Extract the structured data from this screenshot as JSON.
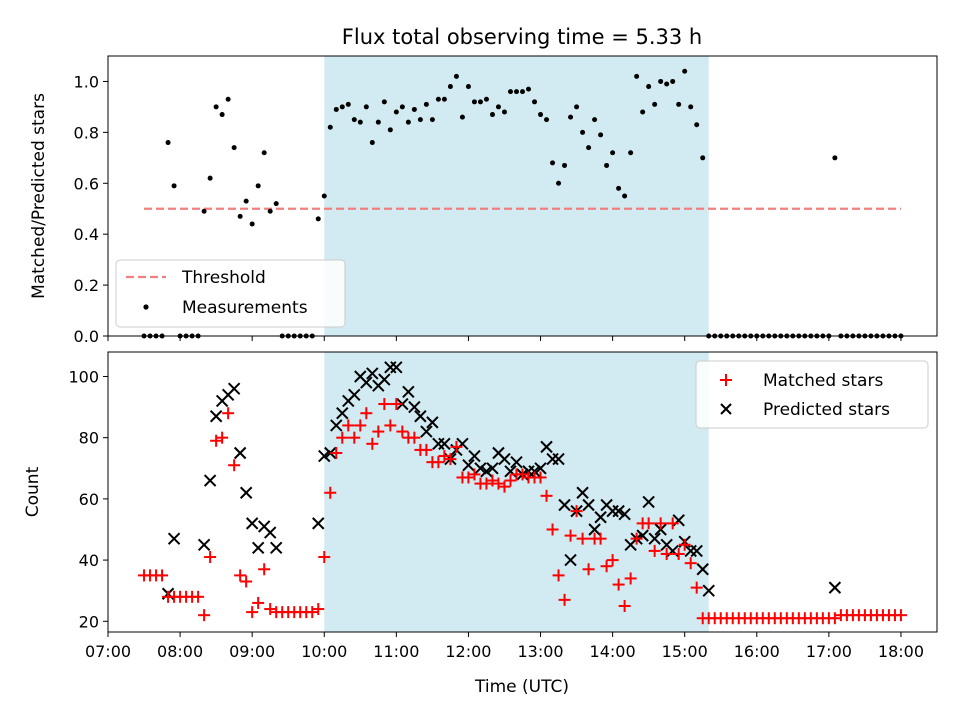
{
  "title": "Flux total observing time = 5.33 h",
  "colors": {
    "highlight": "#add8e6",
    "threshold": "#f08080",
    "measurement": "#000000",
    "matched": "#ff0000",
    "predicted": "#000000"
  },
  "chart_data": [
    {
      "type": "scatter",
      "ylabel": "Matched/Predicted stars",
      "ylim": [
        0,
        1.1
      ],
      "yticks": [
        "0.0",
        "0.2",
        "0.4",
        "0.6",
        "0.8",
        "1.0"
      ],
      "xlim": [
        "07:00",
        "18:30"
      ],
      "highlight_span": [
        "10:00",
        "15:20"
      ],
      "legend": {
        "position": "lower-left",
        "entries": [
          "Threshold",
          "Measurements"
        ]
      },
      "threshold": {
        "name": "Threshold",
        "x": [
          "07:30",
          "18:00"
        ],
        "value": 0.5
      },
      "series": [
        {
          "name": "Measurements",
          "x": [
            "07:30",
            "07:35",
            "07:40",
            "07:45",
            "07:50",
            "07:55",
            "08:00",
            "08:05",
            "08:10",
            "08:15",
            "08:20",
            "08:25",
            "08:30",
            "08:35",
            "08:40",
            "08:45",
            "08:50",
            "08:55",
            "09:00",
            "09:05",
            "09:10",
            "09:15",
            "09:20",
            "09:25",
            "09:30",
            "09:35",
            "09:40",
            "09:45",
            "09:50",
            "09:55",
            "10:00",
            "10:05",
            "10:10",
            "10:15",
            "10:20",
            "10:25",
            "10:30",
            "10:35",
            "10:40",
            "10:45",
            "10:50",
            "10:55",
            "11:00",
            "11:05",
            "11:10",
            "11:15",
            "11:20",
            "11:25",
            "11:30",
            "11:35",
            "11:40",
            "11:45",
            "11:50",
            "11:55",
            "12:00",
            "12:05",
            "12:10",
            "12:15",
            "12:20",
            "12:25",
            "12:30",
            "12:35",
            "12:40",
            "12:45",
            "12:50",
            "12:55",
            "13:00",
            "13:05",
            "13:10",
            "13:15",
            "13:20",
            "13:25",
            "13:30",
            "13:35",
            "13:40",
            "13:45",
            "13:50",
            "13:55",
            "14:00",
            "14:05",
            "14:10",
            "14:15",
            "14:20",
            "14:25",
            "14:30",
            "14:35",
            "14:40",
            "14:45",
            "14:50",
            "14:55",
            "15:00",
            "15:05",
            "15:10",
            "15:15",
            "15:20",
            "15:25",
            "15:30",
            "15:35",
            "15:40",
            "15:45",
            "15:50",
            "15:55",
            "16:00",
            "16:05",
            "16:10",
            "16:15",
            "16:20",
            "16:25",
            "16:30",
            "16:35",
            "16:40",
            "16:45",
            "16:50",
            "16:55",
            "17:00",
            "17:05",
            "17:10",
            "17:15",
            "17:20",
            "17:25",
            "17:30",
            "17:35",
            "17:40",
            "17:45",
            "17:50",
            "17:55",
            "18:00"
          ],
          "y": [
            0,
            0,
            0,
            0,
            0.76,
            0.59,
            0,
            0,
            0,
            0,
            0.49,
            0.62,
            0.9,
            0.87,
            0.93,
            0.74,
            0.47,
            0.53,
            0.44,
            0.59,
            0.72,
            0.49,
            0.52,
            0,
            0,
            0,
            0,
            0,
            0,
            0.46,
            0.55,
            0.82,
            0.89,
            0.9,
            0.91,
            0.85,
            0.84,
            0.9,
            0.76,
            0.84,
            0.92,
            0.81,
            0.88,
            0.9,
            0.84,
            0.89,
            0.85,
            0.91,
            0.85,
            0.93,
            0.93,
            0.98,
            1.02,
            0.86,
            0.98,
            0.92,
            0.92,
            0.93,
            0.87,
            0.9,
            0.88,
            0.96,
            0.96,
            0.96,
            0.97,
            0.92,
            0.87,
            0.85,
            0.68,
            0.6,
            0.67,
            0.86,
            0.9,
            0.8,
            0.74,
            0.85,
            0.79,
            0.67,
            0.72,
            0.58,
            0.55,
            0.72,
            1.02,
            0.88,
            0.98,
            0.91,
            1.0,
            0.99,
            1.0,
            0.91,
            1.04,
            0.9,
            0.83,
            0.7,
            0,
            0,
            0,
            0,
            0,
            0,
            0,
            0,
            0,
            0,
            0,
            0,
            0,
            0,
            0,
            0,
            0,
            0,
            0,
            0,
            0,
            0.7,
            0,
            0,
            0,
            0,
            0,
            0,
            0,
            0,
            0,
            0,
            0
          ]
        }
      ]
    },
    {
      "type": "scatter",
      "xlabel": "Time (UTC)",
      "ylabel": "Count",
      "ylim": [
        16.5,
        108
      ],
      "yticks": [
        "20",
        "40",
        "60",
        "80",
        "100"
      ],
      "xlim": [
        "07:00",
        "18:30"
      ],
      "xticks": [
        "07:00",
        "08:00",
        "09:00",
        "10:00",
        "11:00",
        "12:00",
        "13:00",
        "14:00",
        "15:00",
        "16:00",
        "17:00",
        "18:00"
      ],
      "highlight_span": [
        "10:00",
        "15:20"
      ],
      "legend": {
        "position": "upper-right",
        "entries": [
          "Matched stars",
          "Predicted stars"
        ]
      },
      "series": [
        {
          "name": "Matched stars",
          "x": [
            "07:30",
            "07:35",
            "07:40",
            "07:45",
            "07:50",
            "07:55",
            "08:00",
            "08:05",
            "08:10",
            "08:15",
            "08:20",
            "08:25",
            "08:30",
            "08:35",
            "08:40",
            "08:45",
            "08:50",
            "08:55",
            "09:00",
            "09:05",
            "09:10",
            "09:15",
            "09:20",
            "09:25",
            "09:30",
            "09:35",
            "09:40",
            "09:45",
            "09:50",
            "09:55",
            "10:00",
            "10:05",
            "10:10",
            "10:15",
            "10:20",
            "10:25",
            "10:30",
            "10:35",
            "10:40",
            "10:45",
            "10:50",
            "10:55",
            "11:00",
            "11:05",
            "11:10",
            "11:15",
            "11:20",
            "11:25",
            "11:30",
            "11:35",
            "11:40",
            "11:45",
            "11:50",
            "11:55",
            "12:00",
            "12:05",
            "12:10",
            "12:15",
            "12:20",
            "12:25",
            "12:30",
            "12:35",
            "12:40",
            "12:45",
            "12:50",
            "12:55",
            "13:00",
            "13:05",
            "13:10",
            "13:15",
            "13:20",
            "13:25",
            "13:30",
            "13:35",
            "13:40",
            "13:45",
            "13:50",
            "13:55",
            "14:00",
            "14:05",
            "14:10",
            "14:15",
            "14:20",
            "14:25",
            "14:30",
            "14:35",
            "14:40",
            "14:45",
            "14:50",
            "14:55",
            "15:00",
            "15:05",
            "15:10",
            "15:15",
            "15:20",
            "15:25",
            "15:30",
            "15:35",
            "15:40",
            "15:45",
            "15:50",
            "15:55",
            "16:00",
            "16:05",
            "16:10",
            "16:15",
            "16:20",
            "16:25",
            "16:30",
            "16:35",
            "16:40",
            "16:45",
            "16:50",
            "16:55",
            "17:00",
            "17:05",
            "17:10",
            "17:15",
            "17:20",
            "17:25",
            "17:30",
            "17:35",
            "17:40",
            "17:45",
            "17:50",
            "17:55",
            "18:00"
          ],
          "y": [
            35,
            35,
            35,
            35,
            28,
            28,
            28,
            28,
            28,
            28,
            22,
            41,
            79,
            80,
            88,
            71,
            35,
            33,
            23,
            26,
            37,
            24,
            23,
            23,
            23,
            23,
            23,
            23,
            23,
            24,
            41,
            62,
            75,
            80,
            84,
            80,
            84,
            88,
            78,
            82,
            91,
            84,
            91,
            82,
            80,
            80,
            76,
            76,
            72,
            72,
            74,
            73,
            77,
            67,
            67,
            68,
            65,
            65,
            66,
            65,
            64,
            66,
            68,
            68,
            67,
            67,
            67,
            61,
            50,
            35,
            27,
            48,
            56,
            47,
            37,
            47,
            47,
            38,
            40,
            32,
            25,
            34,
            47,
            52,
            52,
            43,
            52,
            42,
            52,
            42,
            45,
            39,
            31,
            21,
            21,
            21,
            21,
            21,
            21,
            21,
            21,
            21,
            21,
            21,
            21,
            21,
            21,
            21,
            21,
            21,
            21,
            21,
            21,
            21,
            21,
            21,
            22,
            22,
            22,
            22,
            22,
            22,
            22,
            22,
            22,
            22,
            22
          ]
        },
        {
          "name": "Predicted stars",
          "x": [
            "07:50",
            "07:55",
            "08:20",
            "08:25",
            "08:30",
            "08:35",
            "08:40",
            "08:45",
            "08:50",
            "08:55",
            "09:00",
            "09:05",
            "09:10",
            "09:15",
            "09:20",
            "09:55",
            "10:00",
            "10:05",
            "10:10",
            "10:15",
            "10:20",
            "10:25",
            "10:30",
            "10:35",
            "10:40",
            "10:45",
            "10:50",
            "10:55",
            "11:00",
            "11:05",
            "11:10",
            "11:15",
            "11:20",
            "11:25",
            "11:30",
            "11:35",
            "11:40",
            "11:45",
            "11:50",
            "11:55",
            "12:00",
            "12:05",
            "12:10",
            "12:15",
            "12:20",
            "12:25",
            "12:30",
            "12:35",
            "12:40",
            "12:45",
            "12:50",
            "12:55",
            "13:00",
            "13:05",
            "13:10",
            "13:15",
            "13:20",
            "13:25",
            "13:30",
            "13:35",
            "13:40",
            "13:45",
            "13:50",
            "13:55",
            "14:00",
            "14:05",
            "14:10",
            "14:15",
            "14:20",
            "14:25",
            "14:30",
            "14:35",
            "14:40",
            "14:45",
            "14:50",
            "14:55",
            "15:00",
            "15:05",
            "15:10",
            "15:15",
            "15:20",
            "17:05"
          ],
          "y": [
            29,
            47,
            45,
            66,
            87,
            92,
            94,
            96,
            75,
            62,
            52,
            44,
            51,
            49,
            44,
            52,
            74,
            75,
            84,
            88,
            92,
            94,
            100,
            98,
            101,
            97,
            99,
            103,
            103,
            91,
            95,
            90,
            87,
            82,
            85,
            78,
            78,
            73,
            76,
            78,
            71,
            74,
            70,
            69,
            70,
            75,
            73,
            69,
            72,
            68,
            69,
            69,
            70,
            77,
            73,
            73,
            58,
            40,
            56,
            62,
            58,
            50,
            54,
            58,
            56,
            56,
            55,
            45,
            47,
            48,
            59,
            47,
            50,
            45,
            43,
            53,
            46,
            43,
            43,
            37,
            30,
            31
          ]
        }
      ]
    }
  ]
}
